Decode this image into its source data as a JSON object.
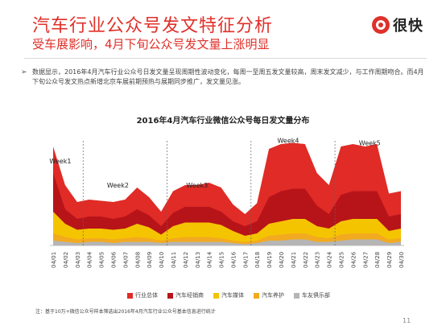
{
  "header": {
    "title": "汽车行业公众号发文特征分析",
    "subtitle": "受车展影响，4月下旬公众号发文量上涨明显",
    "logo_text": "很快"
  },
  "bullet": {
    "mark": "➢",
    "text": "数据显示，2016年4月汽车行业公众号日发文量呈现周期性波动变化，每周一至周五发文量较高，周末发文减少，与工作周期吻合。而4月下旬公众号发文热点新增北京车展前期预热与展期同步推广，发文量见涨。"
  },
  "footer": {
    "note": "注：基于10万+微信公众号样本筛选出2016年4月汽车行业公众号基本信息进行统计",
    "page_number": "11"
  },
  "chart_data": {
    "type": "area",
    "title": "2016年4月汽车行业微信公众号每日发文量分布",
    "categories": [
      "04/01",
      "04/02",
      "04/03",
      "04/04",
      "04/05",
      "04/06",
      "04/07",
      "04/08",
      "04/09",
      "04/10",
      "04/11",
      "04/12",
      "04/13",
      "04/14",
      "04/15",
      "04/16",
      "04/17",
      "04/18",
      "04/19",
      "04/20",
      "04/21",
      "04/22",
      "04/23",
      "04/24",
      "04/25",
      "04/26",
      "04/27",
      "04/28",
      "04/29",
      "04/30"
    ],
    "ylim": [
      0,
      100
    ],
    "series": [
      {
        "name": "行业总体",
        "color": "#e02b26",
        "values": [
          82,
          50,
          36,
          38,
          37,
          36,
          38,
          48,
          40,
          28,
          45,
          50,
          50,
          52,
          48,
          34,
          26,
          35,
          80,
          84,
          85,
          84,
          60,
          50,
          82,
          84,
          82,
          84,
          43,
          45
        ]
      },
      {
        "name": "汽车经销商",
        "color": "#b7141a",
        "values": [
          60,
          30,
          22,
          24,
          24,
          22,
          24,
          30,
          25,
          16,
          27,
          32,
          32,
          32,
          28,
          20,
          16,
          20,
          40,
          45,
          47,
          47,
          33,
          26,
          42,
          45,
          45,
          45,
          24,
          26
        ]
      },
      {
        "name": "汽车媒体",
        "color": "#f5c400",
        "values": [
          28,
          18,
          13,
          14,
          14,
          13,
          14,
          18,
          15,
          9,
          16,
          19,
          19,
          19,
          17,
          12,
          8,
          10,
          18,
          20,
          22,
          22,
          16,
          14,
          20,
          22,
          22,
          22,
          12,
          14
        ]
      },
      {
        "name": "汽车养护",
        "color": "#f2aa20",
        "values": [
          10,
          7,
          5,
          6,
          6,
          5,
          6,
          7,
          6,
          4,
          6,
          7,
          7,
          7,
          6,
          4,
          3,
          4,
          8,
          9,
          10,
          10,
          7,
          6,
          9,
          10,
          10,
          10,
          5,
          6
        ]
      },
      {
        "name": "车友俱乐部",
        "color": "#b5b5b5",
        "values": [
          4,
          3,
          2,
          3,
          3,
          2,
          3,
          3,
          3,
          2,
          3,
          3,
          3,
          3,
          3,
          2,
          1,
          2,
          4,
          4,
          5,
          5,
          3,
          3,
          4,
          5,
          5,
          5,
          2,
          3
        ]
      }
    ],
    "annotations": [
      {
        "text": "Week1",
        "index": 0.6,
        "value": 68
      },
      {
        "text": "Week2",
        "index": 5.4,
        "value": 48
      },
      {
        "text": "Week3",
        "index": 12.0,
        "value": 48
      },
      {
        "text": "Week4",
        "index": 19.6,
        "value": 85
      },
      {
        "text": "Week5",
        "index": 26.4,
        "value": 83
      }
    ],
    "week_dividers": [
      2.5,
      9.5,
      16.5,
      23.5
    ],
    "legend_position": "bottom"
  }
}
